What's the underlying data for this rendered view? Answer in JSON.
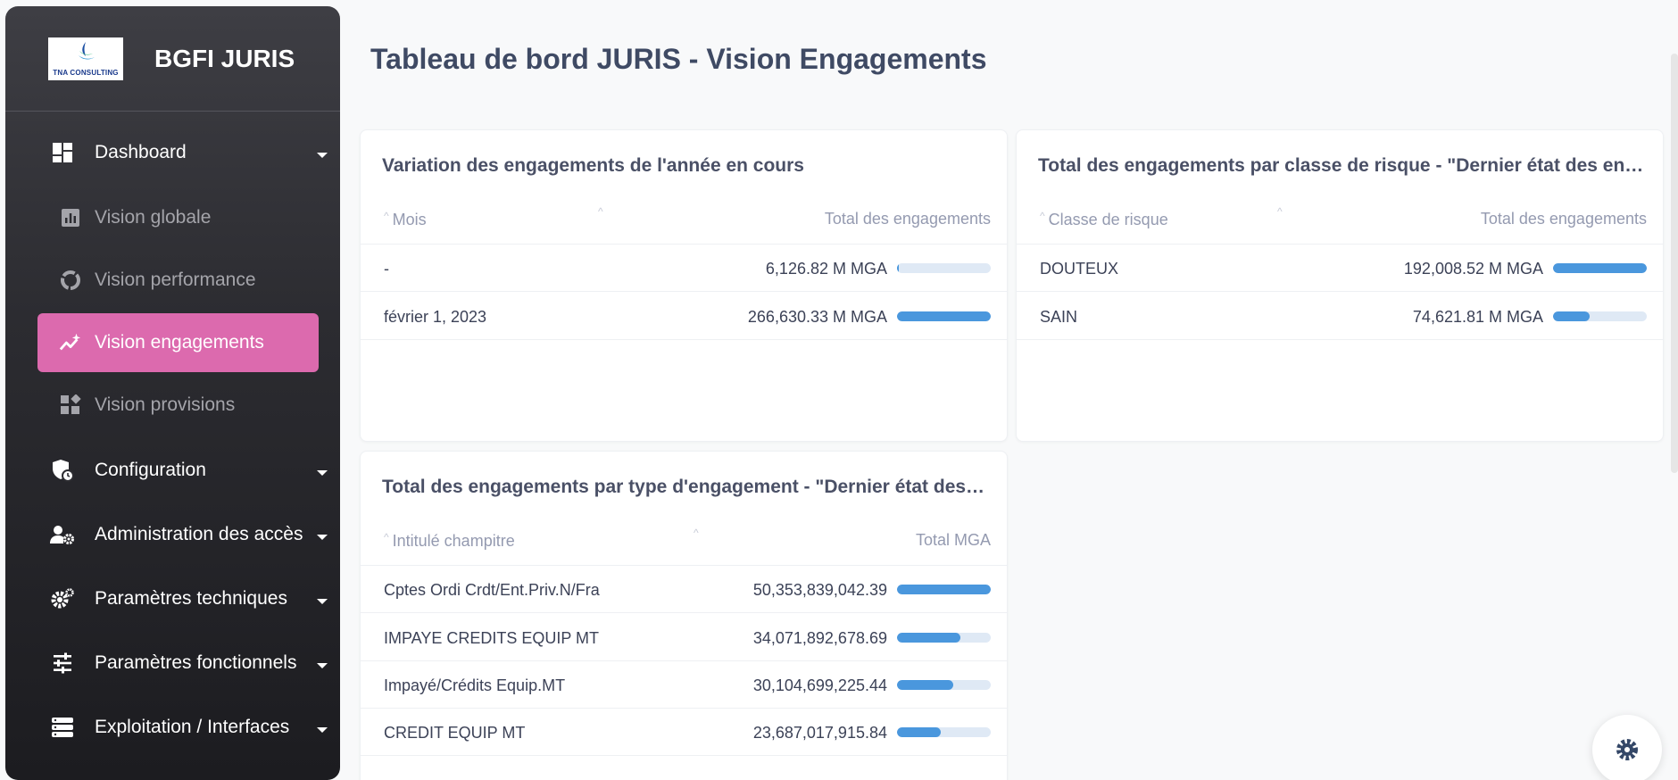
{
  "brand": {
    "logo_text": "TNA CONSULTING",
    "title": "BGFI JURIS"
  },
  "sidebar": {
    "dashboard": "Dashboard",
    "sub": [
      "Vision globale",
      "Vision performance",
      "Vision engagements",
      "Vision provisions"
    ],
    "sections": [
      "Configuration",
      "Administration des accès",
      "Paramètres techniques",
      "Paramètres fonctionnels",
      "Exploitation / Interfaces"
    ],
    "active_color": "#dc6aae"
  },
  "page": {
    "title": "Tableau de bord JURIS - Vision Engagements"
  },
  "card1": {
    "title": "Variation des engagements de l'année en cours",
    "col1": "Mois",
    "col2": "Total des engagements",
    "rows": [
      {
        "label": "-",
        "value": "6,126.82 M MGA",
        "pct": 0.023
      },
      {
        "label": "février 1, 2023",
        "value": "266,630.33 M MGA",
        "pct": 1.0
      }
    ]
  },
  "card2": {
    "title": "Total des engagements par classe de risque - \"Dernier état des en…",
    "col1": "Classe de risque",
    "col2": "Total des engagements",
    "rows": [
      {
        "label": "DOUTEUX",
        "value": "192,008.52 M MGA",
        "pct": 1.0
      },
      {
        "label": "SAIN",
        "value": "74,621.81 M MGA",
        "pct": 0.389
      }
    ]
  },
  "card3": {
    "title": "Total des engagements par type d'engagement - \"Dernier état des…",
    "col1": "Intitulé champitre",
    "col2": "Total MGA",
    "rows": [
      {
        "label": "Cptes Ordi Crdt/Ent.Priv.N/Fra",
        "value": "50,353,839,042.39",
        "pct": 1.0
      },
      {
        "label": "IMPAYE CREDITS EQUIP MT",
        "value": "34,071,892,678.69",
        "pct": 0.677
      },
      {
        "label": "Impayé/Crédits Equip.MT",
        "value": "30,104,699,225.44",
        "pct": 0.598
      },
      {
        "label": "CREDIT EQUIP MT",
        "value": "23,687,017,915.84",
        "pct": 0.47
      }
    ]
  },
  "colors": {
    "bar_fill": "#4a97dd",
    "bar_track": "#dfe9f5"
  }
}
